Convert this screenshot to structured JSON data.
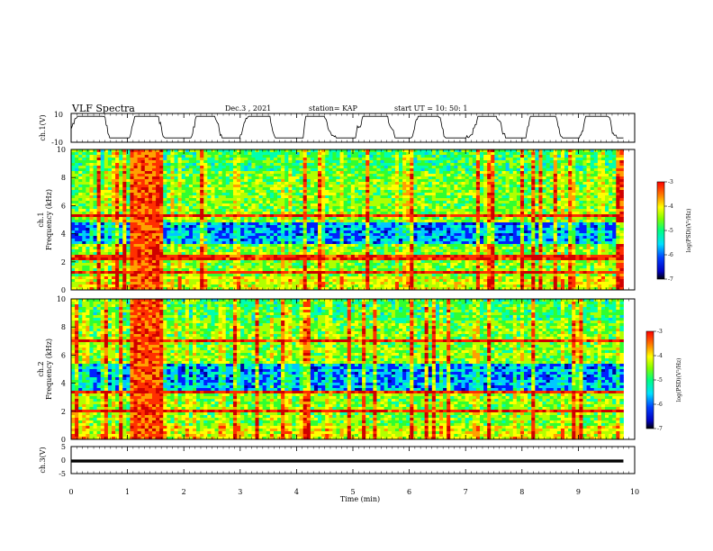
{
  "header": {
    "title": "VLF Spectra",
    "date": "Dec.3 , 2021",
    "station": "station= KAP",
    "start": "start UT = 10: 50: 1"
  },
  "colors": {
    "colormap": [
      "#0000a0",
      "#0020ff",
      "#00c8ff",
      "#00ffb0",
      "#30ff30",
      "#b0ff00",
      "#ffff00",
      "#ffa000",
      "#ff3000",
      "#d00000"
    ]
  },
  "chart_data": [
    {
      "type": "line",
      "id": "ch1-waveform",
      "ylabel": "ch.1(V)",
      "ylim": [
        -10,
        10
      ],
      "y_ticks": [
        "10",
        "-10"
      ],
      "xlim": [
        0,
        10
      ],
      "x_range_data": [
        0,
        9.8
      ],
      "y_range_observed": [
        -7,
        8
      ]
    },
    {
      "type": "heatmap",
      "id": "ch1-spectrogram",
      "ylabel": "ch.1\nFrequency (kHz)",
      "xlim": [
        0,
        10
      ],
      "ylim": [
        0,
        10
      ],
      "y_ticks": [
        "0",
        "2",
        "4",
        "6",
        "8",
        "10"
      ],
      "x_range_data": [
        0,
        9.8
      ],
      "colorbar": {
        "label": "log(PSD)(V²/Hz)",
        "range": [
          -7,
          -3
        ],
        "ticks": [
          "-3",
          "-4",
          "-5",
          "-6",
          "-7"
        ]
      },
      "features": {
        "strong_band_start_min": 1.05,
        "strong_band_end_min": 1.65,
        "horizontal_lines_kHz": [
          5.3,
          2.3,
          1.2
        ],
        "low_power_band_kHz": [
          3.2,
          4.8
        ]
      }
    },
    {
      "type": "heatmap",
      "id": "ch2-spectrogram",
      "ylabel": "ch.2\nFrequency (kHz)",
      "xlim": [
        0,
        10
      ],
      "ylim": [
        0,
        10
      ],
      "y_ticks": [
        "0",
        "2",
        "4",
        "6",
        "8",
        "10"
      ],
      "x_range_data": [
        0,
        9.8
      ],
      "colorbar": {
        "label": "log(PSD)(V²/Hz)",
        "range": [
          -7,
          -3
        ],
        "ticks": [
          "-3",
          "-4",
          "-5",
          "-6",
          "-7"
        ]
      },
      "features": {
        "strong_band_start_min": 1.05,
        "strong_band_end_min": 1.65,
        "horizontal_lines_kHz": [
          7.0,
          3.3,
          2.0
        ],
        "low_power_band_kHz": [
          3.5,
          5.3
        ]
      }
    },
    {
      "type": "line",
      "id": "ch3-waveform",
      "ylabel": "ch.3(V)",
      "ylim": [
        -5,
        5
      ],
      "y_ticks": [
        "5",
        "0",
        "-5"
      ],
      "xlim": [
        0,
        10
      ],
      "x_range_data": [
        0,
        9.8
      ],
      "y_band_observed": [
        -0.9,
        0.2
      ]
    }
  ],
  "x_axis": {
    "label": "Time (min)",
    "ticks": [
      "0",
      "1",
      "2",
      "3",
      "4",
      "5",
      "6",
      "7",
      "8",
      "9",
      "10"
    ]
  }
}
